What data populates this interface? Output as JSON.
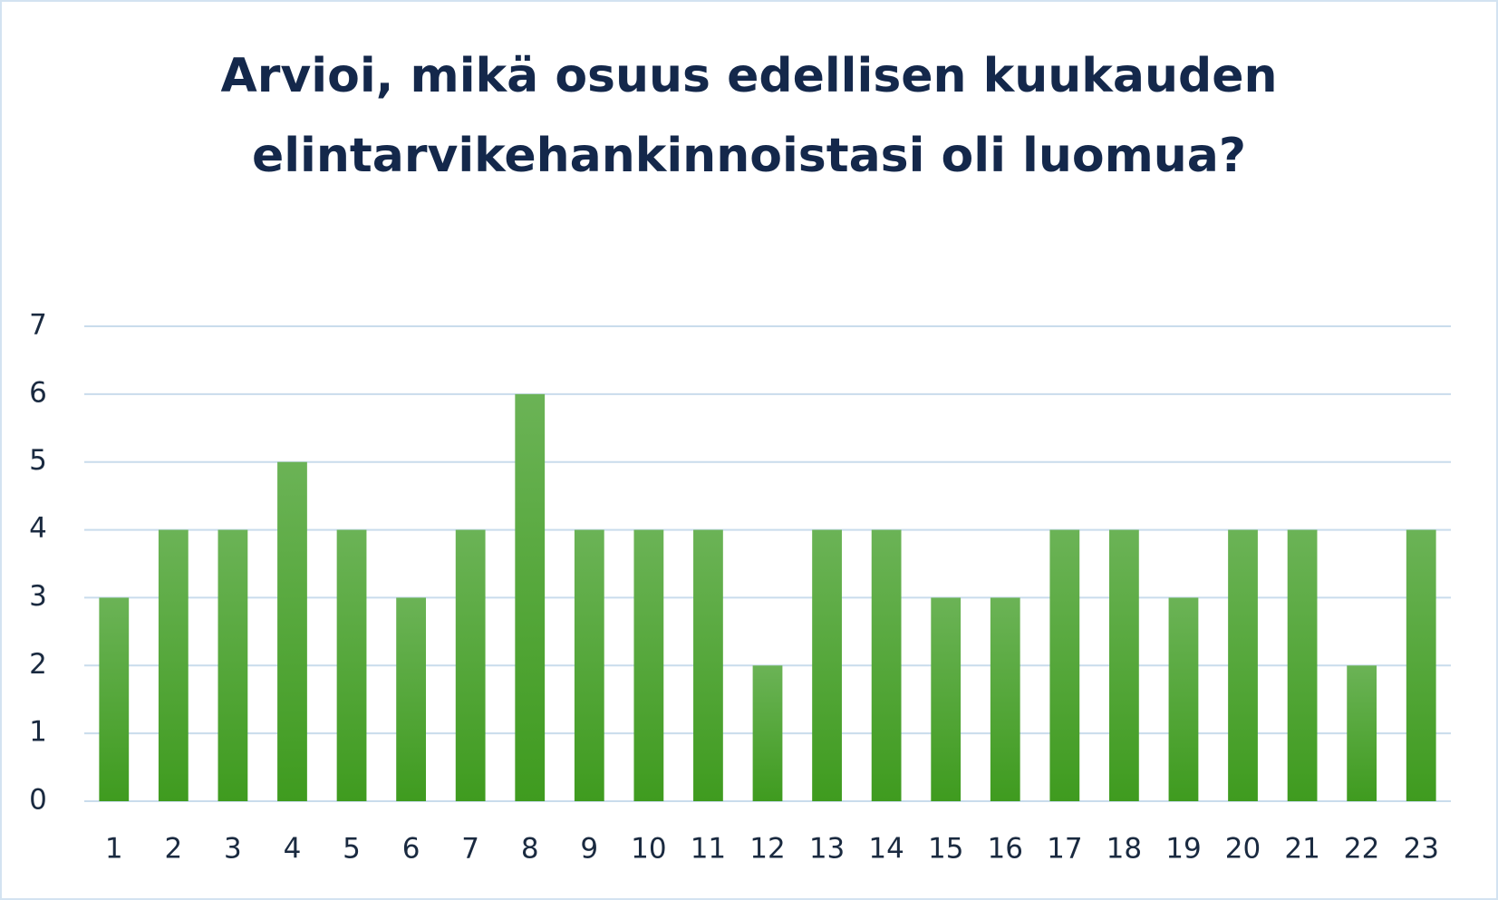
{
  "chart_data": {
    "type": "bar",
    "title": "Arvioi, mikä osuus edellisen kuukauden elintarvikehankinnoistasi oli luomua?",
    "categories": [
      "1",
      "2",
      "3",
      "4",
      "5",
      "6",
      "7",
      "8",
      "9",
      "10",
      "11",
      "12",
      "13",
      "14",
      "15",
      "16",
      "17",
      "18",
      "19",
      "20",
      "21",
      "22",
      "23"
    ],
    "values": [
      3,
      4,
      4,
      5,
      4,
      3,
      4,
      6,
      4,
      4,
      4,
      2,
      4,
      4,
      3,
      3,
      4,
      4,
      3,
      4,
      4,
      2,
      4
    ],
    "color": "#4ea72e",
    "ylim": [
      0,
      7
    ],
    "yticks": [
      0,
      1,
      2,
      3,
      4,
      5,
      6,
      7
    ],
    "grid": true
  }
}
